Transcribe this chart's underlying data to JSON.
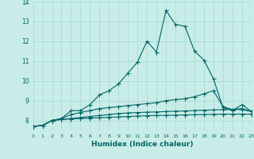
{
  "xlabel": "Humidex (Indice chaleur)",
  "xlabel_fontsize": 6.5,
  "background_color": "#c8ece8",
  "grid_color": "#a8d8d0",
  "line_color": "#006666",
  "x_values": [
    0,
    1,
    2,
    3,
    4,
    5,
    6,
    7,
    8,
    9,
    10,
    11,
    12,
    13,
    14,
    15,
    16,
    17,
    18,
    19,
    20,
    21,
    22,
    23
  ],
  "series1": [
    7.7,
    7.75,
    8.0,
    8.1,
    8.5,
    8.5,
    8.8,
    9.3,
    9.5,
    9.85,
    10.4,
    10.95,
    12.0,
    11.45,
    13.55,
    12.85,
    12.75,
    11.5,
    11.05,
    10.1,
    8.65,
    8.5,
    8.8,
    8.45
  ],
  "series2": [
    7.7,
    7.75,
    8.0,
    8.1,
    8.3,
    8.4,
    8.5,
    8.6,
    8.65,
    8.7,
    8.75,
    8.8,
    8.85,
    8.9,
    9.0,
    9.05,
    9.1,
    9.2,
    9.35,
    9.5,
    8.7,
    8.55,
    8.6,
    8.45
  ],
  "series3": [
    7.7,
    7.75,
    8.0,
    8.05,
    8.1,
    8.15,
    8.2,
    8.25,
    8.3,
    8.35,
    8.38,
    8.4,
    8.42,
    8.43,
    8.45,
    8.47,
    8.48,
    8.5,
    8.52,
    8.53,
    8.55,
    8.55,
    8.55,
    8.45
  ],
  "series4": [
    7.7,
    7.75,
    8.0,
    8.05,
    8.08,
    8.1,
    8.12,
    8.14,
    8.16,
    8.18,
    8.2,
    8.22,
    8.24,
    8.25,
    8.26,
    8.27,
    8.28,
    8.29,
    8.3,
    8.31,
    8.32,
    8.32,
    8.32,
    8.32
  ],
  "ylim": [
    7.5,
    14.0
  ],
  "xlim": [
    0,
    23
  ],
  "yticks": [
    8,
    9,
    10,
    11,
    12,
    13,
    14
  ],
  "xticks": [
    0,
    1,
    2,
    3,
    4,
    5,
    6,
    7,
    8,
    9,
    10,
    11,
    12,
    13,
    14,
    15,
    16,
    17,
    18,
    19,
    20,
    21,
    22,
    23
  ],
  "markersize": 2.0,
  "linewidth": 0.8
}
